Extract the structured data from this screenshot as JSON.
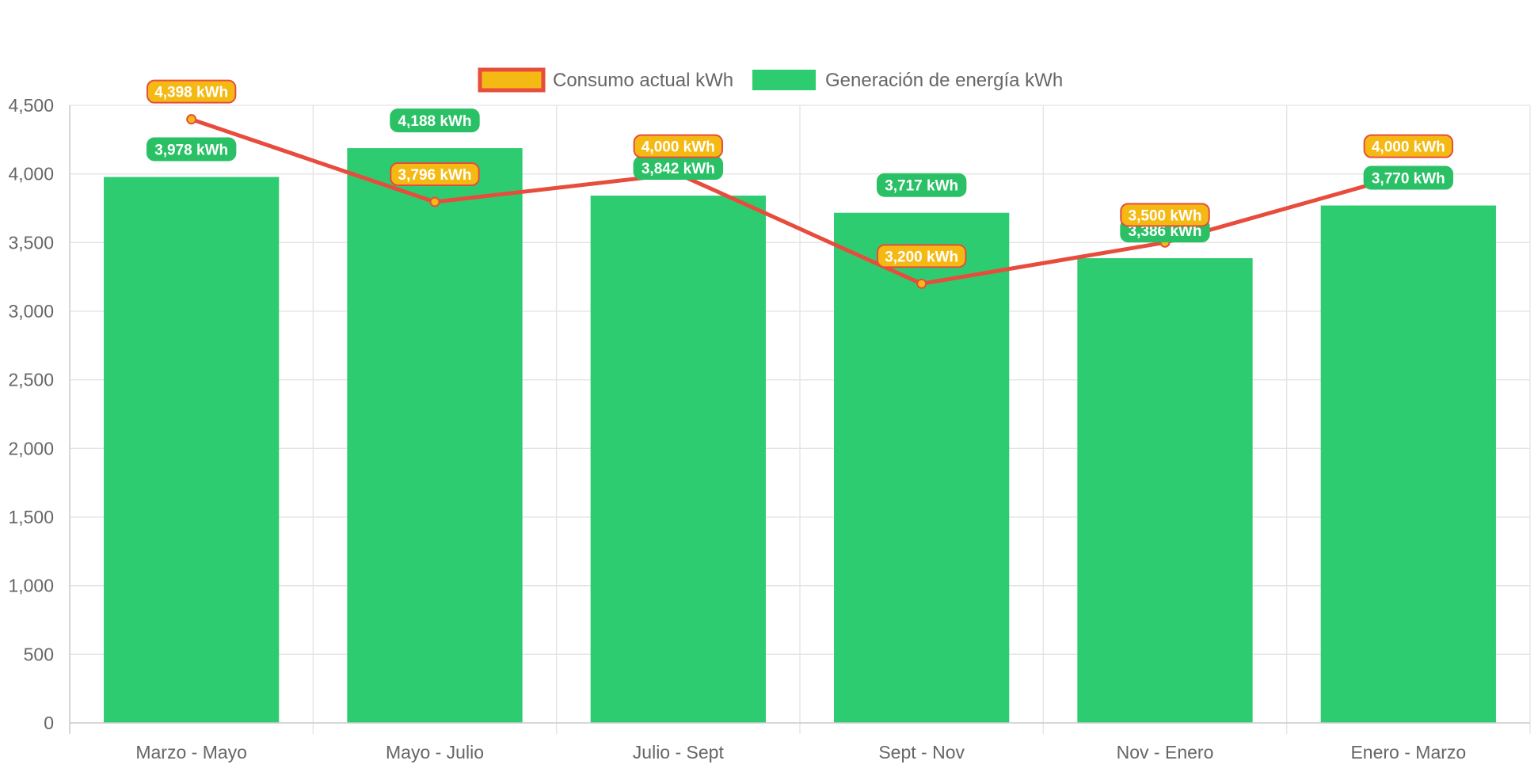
{
  "chart_data": {
    "type": "bar",
    "title": "",
    "xlabel": "",
    "ylabel": "",
    "ylim": [
      0,
      4500
    ],
    "y_ticks": [
      0,
      500,
      1000,
      1500,
      2000,
      2500,
      3000,
      3500,
      4000,
      4500
    ],
    "y_tick_labels": [
      "0",
      "500",
      "1,000",
      "1,500",
      "2,000",
      "2,500",
      "3,000",
      "3,500",
      "4,000",
      "4,500"
    ],
    "grid": true,
    "legend_position": "top-center",
    "categories": [
      "Marzo - Mayo",
      "Mayo - Julio",
      "Julio - Sept",
      "Sept - Nov",
      "Nov - Enero",
      "Enero - Marzo"
    ],
    "series": [
      {
        "name": "Consumo actual kWh",
        "type": "line",
        "values": [
          4398,
          3796,
          4000,
          3200,
          3500,
          4000
        ],
        "labels": [
          "4,398 kWh",
          "3,796 kWh",
          "4,000 kWh",
          "3,200 kWh",
          "3,500 kWh",
          "4,000 kWh"
        ],
        "color": "#e74c3c",
        "fill_color": "#f5b914"
      },
      {
        "name": "Generación de energía kWh",
        "type": "bar",
        "values": [
          3978,
          4188,
          3842,
          3717,
          3386,
          3770
        ],
        "labels": [
          "3,978 kWh",
          "4,188 kWh",
          "3,842 kWh",
          "3,717 kWh",
          "3,386 kWh",
          "3,770 kWh"
        ],
        "color": "#2ecc71",
        "label_color": "#2ac065"
      }
    ]
  }
}
